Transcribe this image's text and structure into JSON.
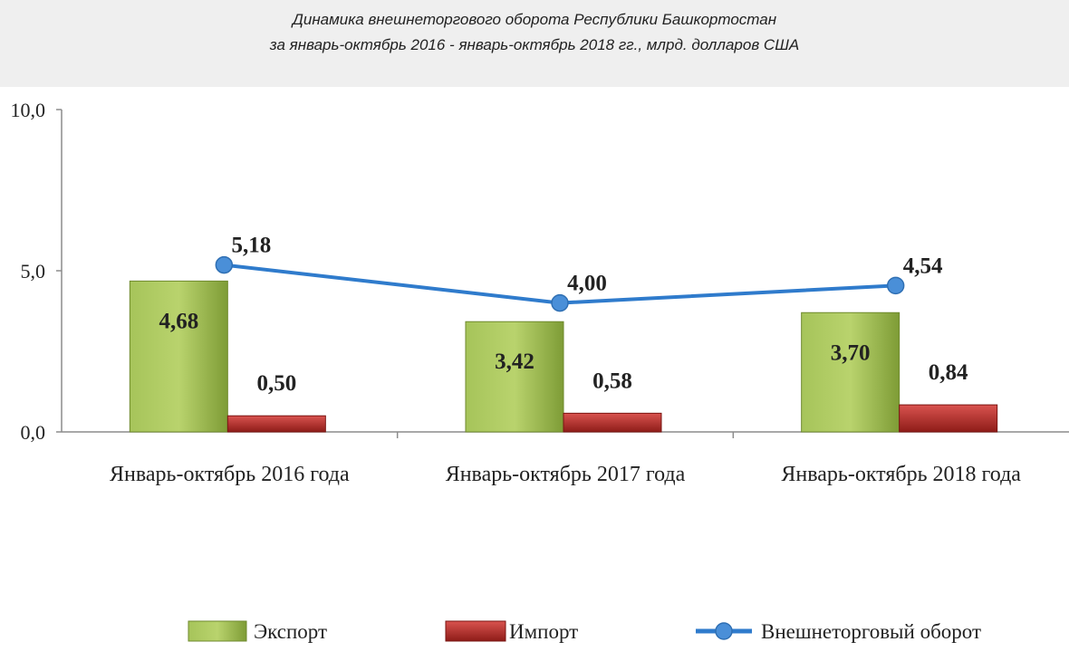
{
  "chart_data": {
    "type": "bar",
    "title": "Динамика внешнеторгового оборота Республики Башкортостан",
    "subtitle": "за январь-октябрь 2016 - январь-октябрь 2018 гг., млрд. долларов США",
    "categories": [
      "Январь-октябрь 2016 года",
      "Январь-октябрь 2017 года",
      "Январь-октябрь 2018 года"
    ],
    "series": [
      {
        "name": "Экспорт",
        "type": "bar",
        "color": "#8fb046",
        "values": [
          4.68,
          3.42,
          3.7
        ],
        "labels": [
          "4,68",
          "3,42",
          "3,70"
        ]
      },
      {
        "name": "Импорт",
        "type": "bar",
        "color": "#c0392b",
        "values": [
          0.5,
          0.58,
          0.84
        ],
        "labels": [
          "0,50",
          "0,58",
          "0,84"
        ]
      },
      {
        "name": "Внешнеторговый оборот",
        "type": "line",
        "color": "#2f7bcc",
        "values": [
          5.18,
          4.0,
          4.54
        ],
        "labels": [
          "5,18",
          "4,00",
          "4,54"
        ]
      }
    ],
    "ylim": [
      0,
      10
    ],
    "yticks": [
      0,
      5,
      10
    ],
    "ytick_labels": [
      "0,0",
      "5,0",
      "10,0"
    ],
    "xlabel": "",
    "ylabel": "",
    "grid": false,
    "legend_position": "bottom"
  }
}
